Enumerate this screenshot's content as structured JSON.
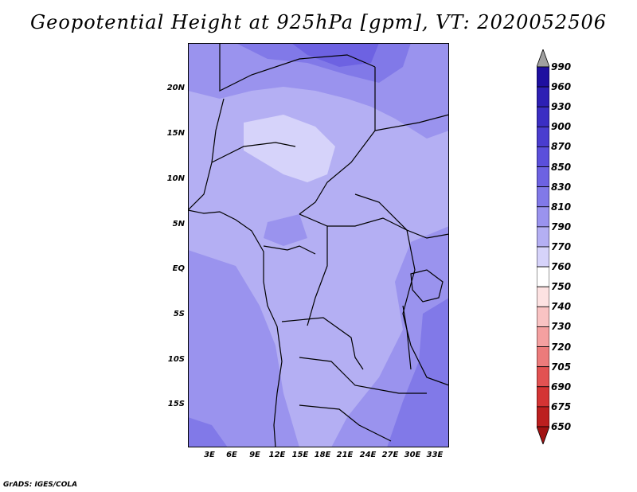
{
  "title": "Geopotential Height at 925hPa [gpm], VT: 2020052506",
  "footer": "GrADS: IGES/COLA",
  "map": {
    "region": "Central Africa",
    "lat_labels": [
      "20N",
      "15N",
      "10N",
      "5N",
      "EQ",
      "5S",
      "10S",
      "15S"
    ],
    "lon_labels": [
      "3E",
      "6E",
      "9E",
      "12E",
      "15E",
      "18E",
      "21E",
      "24E",
      "27E",
      "30E",
      "33E"
    ]
  },
  "legend": {
    "levels": [
      "990",
      "960",
      "930",
      "900",
      "870",
      "850",
      "830",
      "810",
      "790",
      "770",
      "760",
      "750",
      "740",
      "730",
      "720",
      "705",
      "690",
      "675",
      "650"
    ],
    "colors": [
      "#1e0fa0",
      "#2d1fb4",
      "#3b2ec3",
      "#4a3dcf",
      "#5b4fdb",
      "#6d62e2",
      "#8179e8",
      "#9a93ee",
      "#b4aff3",
      "#d6d3fa",
      "#ffffff",
      "#fde2e2",
      "#f9c3c3",
      "#f4a0a0",
      "#ec7b7b",
      "#e25252",
      "#d43434",
      "#bc1f1f",
      "#a11212"
    ],
    "top_arrow_color": "#a0a0a0"
  }
}
